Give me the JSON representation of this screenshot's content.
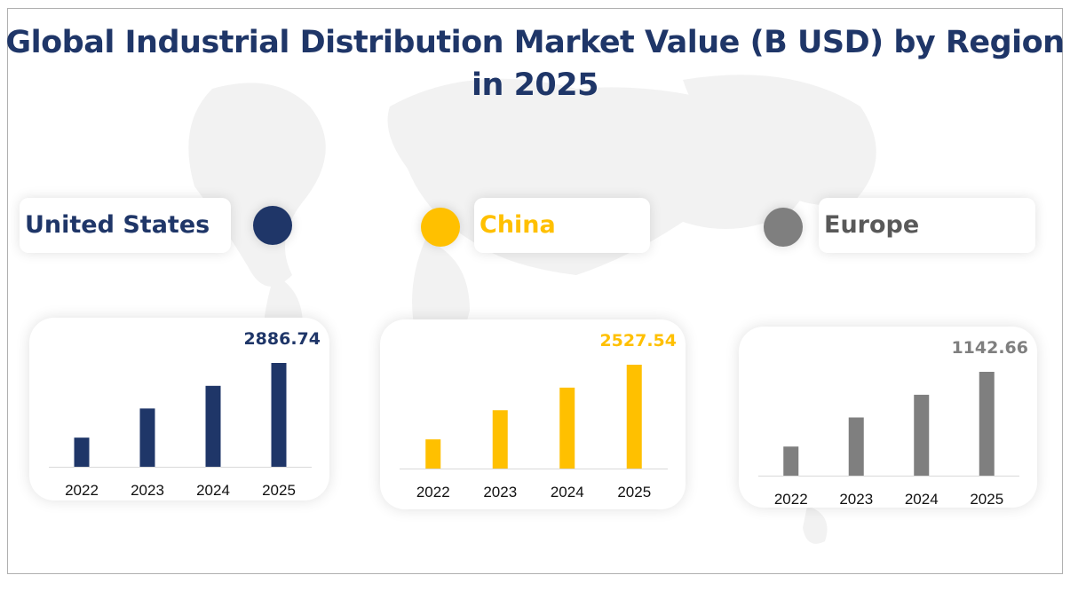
{
  "chart_data": {
    "type": "bar",
    "title": "Global Industrial Distribution Market Value (B USD) by Region in 2025",
    "categories": [
      "2022",
      "2023",
      "2024",
      "2025"
    ],
    "panels": [
      {
        "region": "United States",
        "color": "#1f3668",
        "values": [
          810,
          1620,
          2250,
          2886.74
        ],
        "label": "2886.74"
      },
      {
        "region": "China",
        "color": "#ffc000",
        "values": [
          710,
          1420,
          1970,
          2527.54
        ],
        "label": "2527.54"
      },
      {
        "region": "Europe",
        "color": "#7f7f7f",
        "values": [
          320,
          640,
          890,
          1142.66
        ],
        "label": "1142.66"
      }
    ],
    "grid": false,
    "legend": "none"
  }
}
